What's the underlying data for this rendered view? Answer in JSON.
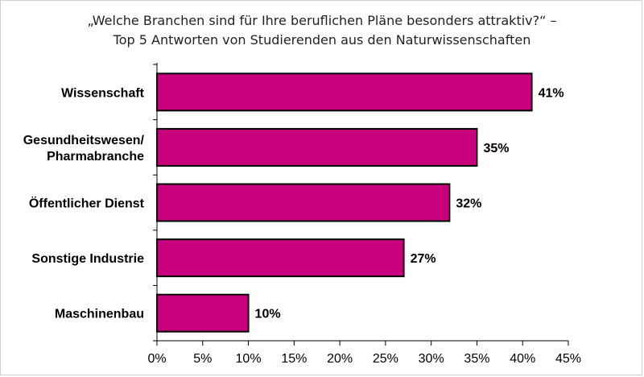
{
  "chart_data": {
    "type": "bar",
    "orientation": "horizontal",
    "title_line1": "„Welche Branchen sind für Ihre beruflichen Pläne besonders attraktiv?“ –",
    "title_line2": "Top 5 Antworten von Studierenden aus den Naturwissenschaften",
    "categories": [
      [
        "Wissenschaft"
      ],
      [
        "Gesundheitswesen/",
        "Pharmabranche"
      ],
      [
        "Öffentlicher Dienst"
      ],
      [
        "Sonstige Industrie"
      ],
      [
        "Maschinenbau"
      ]
    ],
    "values": [
      41,
      35,
      32,
      27,
      10
    ],
    "value_labels": [
      "41%",
      "35%",
      "32%",
      "27%",
      "10%"
    ],
    "xlim": [
      0,
      45
    ],
    "xticks": [
      0,
      5,
      10,
      15,
      20,
      25,
      30,
      35,
      40,
      45
    ],
    "xtick_labels": [
      "0%",
      "5%",
      "10%",
      "15%",
      "20%",
      "25%",
      "30%",
      "35%",
      "40%",
      "45%"
    ],
    "xlabel": "",
    "ylabel": "",
    "grid": false,
    "legend": "none",
    "colors": {
      "bar_fill": "#C8007D",
      "bar_stroke": "#000000",
      "axis": "#000000"
    }
  }
}
